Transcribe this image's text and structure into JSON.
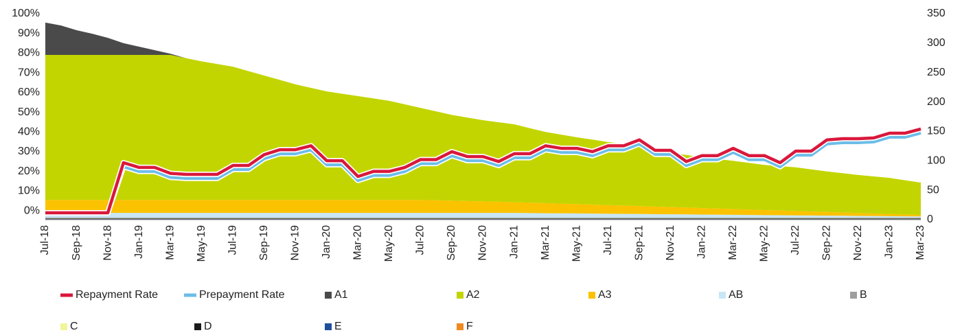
{
  "chart_data": {
    "type": "stacked-area-line",
    "categories": [
      "Jul-18",
      null,
      "Sep-18",
      null,
      "Nov-18",
      null,
      "Jan-19",
      null,
      "Mar-19",
      null,
      "May-19",
      null,
      "Jul-19",
      null,
      "Sep-19",
      null,
      "Nov-19",
      null,
      "Jan-20",
      null,
      "Mar-20",
      null,
      "May-20",
      null,
      "Jul-20",
      null,
      "Sep-20",
      null,
      "Nov-20",
      null,
      "Jan-21",
      null,
      "Mar-21",
      null,
      "May-21",
      null,
      "Jul-21",
      null,
      "Sep-21",
      null,
      "Nov-21",
      null,
      "Jan-22",
      null,
      "Mar-22",
      null,
      "May-22",
      null,
      "Jul-22",
      null,
      "Sep-22",
      null,
      "Nov-22",
      null,
      "Jan-23",
      null,
      "Mar-23"
    ],
    "ylim": [
      -4.5,
      100
    ],
    "yticks": [
      {
        "value": 0,
        "label": "0%"
      },
      {
        "value": 10,
        "label": "10%"
      },
      {
        "value": 20,
        "label": "20%"
      },
      {
        "value": 30,
        "label": "30%"
      },
      {
        "value": 40,
        "label": "40%"
      },
      {
        "value": 50,
        "label": "50%"
      },
      {
        "value": 60,
        "label": "60%"
      },
      {
        "value": 70,
        "label": "70%"
      },
      {
        "value": 80,
        "label": "80%"
      },
      {
        "value": 90,
        "label": "90%"
      },
      {
        "value": 100,
        "label": "100%"
      }
    ],
    "y2lim": [
      0,
      350
    ],
    "y2ticks": [
      0,
      50,
      100,
      150,
      200,
      250,
      300,
      350
    ],
    "grid": false,
    "legend": "bottom",
    "series": [
      {
        "name": "Repayment Rate",
        "kind": "line",
        "color": "#d9183b",
        "values": [
          -1,
          -1,
          -1,
          -1,
          -1,
          24.4,
          22,
          22,
          19,
          18.5,
          18.5,
          18.5,
          23,
          23,
          28.5,
          31,
          31,
          33,
          25.4,
          25.4,
          17.4,
          20,
          20,
          22,
          26,
          26,
          30,
          27.5,
          27.5,
          25,
          29,
          29,
          33,
          31.7,
          31.7,
          30,
          33,
          33,
          36,
          30.7,
          30.7,
          25,
          28,
          28,
          31.7,
          28,
          28,
          24.4,
          30.3,
          30.3,
          36,
          36.6,
          36.6,
          37,
          39.4,
          39.4,
          41.5
        ]
      },
      {
        "name": "Prepayment Rate",
        "kind": "line",
        "color": "#6cbde8",
        "values": [
          -1,
          -1,
          -1,
          -1,
          -1,
          22.4,
          20,
          20,
          17,
          16.5,
          16.5,
          16.5,
          21,
          21,
          26.5,
          29,
          29,
          31,
          23.4,
          23.4,
          15.4,
          18,
          18,
          20,
          24,
          24,
          28,
          25.5,
          25.5,
          23,
          27,
          27,
          31,
          29.7,
          29.7,
          28,
          31,
          31,
          34,
          28.7,
          28.7,
          23,
          26,
          26,
          29.7,
          26,
          26,
          22.4,
          28.3,
          28.3,
          34,
          34.6,
          34.6,
          35,
          37.4,
          37.4,
          39.5
        ]
      },
      {
        "name": "A1",
        "kind": "area",
        "axis": "y2",
        "color": "#4a4a4a",
        "values": [
          55,
          50,
          42,
          36,
          29,
          20,
          14,
          8,
          2,
          0,
          0,
          0,
          0,
          0,
          0,
          0,
          0,
          0,
          0,
          0,
          0,
          0,
          0,
          0,
          0,
          0,
          0,
          0,
          0,
          0,
          0,
          0,
          0,
          0,
          0,
          0,
          0,
          0,
          0,
          0,
          0,
          0,
          0,
          0,
          0,
          0,
          0,
          0,
          0,
          0,
          0,
          0,
          0,
          0,
          0,
          0,
          0
        ]
      },
      {
        "name": "A2",
        "kind": "area",
        "axis": "y2",
        "color": "#c3d500",
        "values": [
          246.5,
          246.5,
          246.5,
          246.5,
          246.5,
          246.5,
          246.5,
          246.5,
          246.5,
          241,
          235.5,
          231,
          226.5,
          219,
          211.5,
          204,
          196.5,
          190.5,
          184.5,
          180.5,
          176.5,
          172.5,
          168.5,
          162.5,
          156.5,
          151.1,
          145.7,
          141.8,
          137.9,
          135,
          132.2,
          126.5,
          120.9,
          117.2,
          113.5,
          110.4,
          107.2,
          104.5,
          101.8,
          97.2,
          92.5,
          89.4,
          86.3,
          84.1,
          81.9,
          79.3,
          76.6,
          75.4,
          74.3,
          71.6,
          68.9,
          66.7,
          64.6,
          63,
          61.3,
          58.2,
          55
        ]
      },
      {
        "name": "A3",
        "kind": "area",
        "axis": "y2",
        "color": "#fbc200",
        "values": [
          22,
          22,
          22,
          22,
          22,
          22,
          22,
          22,
          22,
          22,
          22,
          22,
          22,
          22,
          22,
          22,
          22,
          22,
          22,
          22,
          22,
          22,
          22,
          22,
          22,
          21.4,
          20.8,
          20.2,
          19.6,
          19,
          18.3,
          17.7,
          17.1,
          16.5,
          15.9,
          15.3,
          14.7,
          14.1,
          13.5,
          12.9,
          12.3,
          11.6,
          11,
          10.4,
          9.8,
          9.2,
          8.6,
          8,
          7.4,
          6.8,
          6.2,
          5.6,
          5,
          4.3,
          3.7,
          3.1,
          2.5
        ]
      },
      {
        "name": "AB",
        "kind": "area",
        "axis": "y2",
        "color": "#c8e6f5",
        "values": [
          8,
          8,
          8,
          8,
          8,
          8,
          8,
          8,
          8,
          8,
          8,
          8,
          8,
          8,
          8,
          8,
          8,
          8,
          8,
          8,
          8,
          8,
          8,
          8,
          8,
          8,
          8,
          8,
          8,
          8,
          8,
          7.8,
          7.5,
          7.3,
          7.1,
          6.8,
          6.6,
          6.4,
          6.2,
          5.9,
          5.7,
          5.5,
          5.2,
          5,
          4.8,
          4.5,
          4.3,
          4.1,
          3.8,
          3.6,
          3.4,
          3.2,
          2.9,
          2.7,
          2.5,
          2.2,
          2
        ]
      },
      {
        "name": "B",
        "kind": "area",
        "axis": "y2",
        "color": "#9e9e9e",
        "values": [
          1,
          1,
          1,
          1,
          1,
          1,
          1,
          1,
          1,
          1,
          1,
          1,
          1,
          1,
          1,
          1,
          1,
          1,
          1,
          1,
          1,
          1,
          1,
          1,
          1,
          1,
          1,
          1,
          1,
          1,
          1,
          1,
          1,
          1,
          1,
          1,
          1,
          1,
          1,
          1,
          1,
          1,
          1,
          1,
          1,
          1,
          1,
          1,
          1,
          1,
          1,
          1,
          1,
          1,
          1,
          1,
          1
        ]
      },
      {
        "name": "C",
        "kind": "area",
        "axis": "y2",
        "color": "#f0f59a",
        "values": [
          0.5,
          0.5,
          0.5,
          0.5,
          0.5,
          0.5,
          0.5,
          0.5,
          0.5,
          0.5,
          0.5,
          0.5,
          0.5,
          0.5,
          0.5,
          0.5,
          0.5,
          0.5,
          0.5,
          0.5,
          0.5,
          0.5,
          0.5,
          0.5,
          0.5,
          0.5,
          0.5,
          0.5,
          0.5,
          0.5,
          0.5,
          0.5,
          0.5,
          0.5,
          0.5,
          0.5,
          0.5,
          0.5,
          0.5,
          0.5,
          0.5,
          0.5,
          0.5,
          0.5,
          0.5,
          0.5,
          0.5,
          0.5,
          0.5,
          0.5,
          0.5,
          0.5,
          0.5,
          0.5,
          0.5,
          0.5,
          0.5
        ]
      },
      {
        "name": "D",
        "kind": "area",
        "axis": "y2",
        "color": "#1a1a1a",
        "values": [
          1,
          1,
          1,
          1,
          1,
          1,
          1,
          1,
          1,
          1,
          1,
          1,
          1,
          1,
          1,
          1,
          1,
          1,
          1,
          1,
          1,
          1,
          1,
          1,
          1,
          1,
          1,
          1,
          1,
          1,
          1,
          1,
          1,
          1,
          1,
          1,
          1,
          1,
          1,
          1,
          1,
          1,
          1,
          1,
          1,
          1,
          1,
          1,
          1,
          1,
          1,
          1,
          1,
          1,
          1,
          1,
          1
        ]
      },
      {
        "name": "E",
        "kind": "area",
        "axis": "y2",
        "color": "#1f4e9c",
        "values": [
          0.5,
          0.5,
          0.5,
          0.5,
          0.5,
          0.5,
          0.5,
          0.5,
          0.5,
          0.5,
          0.5,
          0.5,
          0.5,
          0.5,
          0.5,
          0.5,
          0.5,
          0.5,
          0.5,
          0.5,
          0.5,
          0.5,
          0.5,
          0.5,
          0.5,
          0.5,
          0.5,
          0.5,
          0.5,
          0.5,
          0.5,
          0.5,
          0.5,
          0.5,
          0.5,
          0.5,
          0.5,
          0.5,
          0.5,
          0.5,
          0.5,
          0.5,
          0.5,
          0.5,
          0.5,
          0.5,
          0.5,
          0.5,
          0.5,
          0.5,
          0.5,
          0.5,
          0.5,
          0.5,
          0.5,
          0.5,
          0.5
        ]
      },
      {
        "name": "F",
        "kind": "area",
        "axis": "y2",
        "color": "#ef8a22",
        "values": [
          0.5,
          0.5,
          0.5,
          0.5,
          0.5,
          0.5,
          0.5,
          0.5,
          0.5,
          0.5,
          0.5,
          0.5,
          0.5,
          0.5,
          0.5,
          0.5,
          0.5,
          0.5,
          0.5,
          0.5,
          0.5,
          0.5,
          0.5,
          0.5,
          0.5,
          0.5,
          0.5,
          0.5,
          0.5,
          0.5,
          0.5,
          0.5,
          0.5,
          0.5,
          0.5,
          0.5,
          0.5,
          0.5,
          0.5,
          0.5,
          0.5,
          0.5,
          0.5,
          0.5,
          0.5,
          0.5,
          0.5,
          0.5,
          0.5,
          0.5,
          0.5,
          0.5,
          0.5,
          0.5,
          0.5,
          0.5,
          0.5
        ]
      }
    ]
  }
}
